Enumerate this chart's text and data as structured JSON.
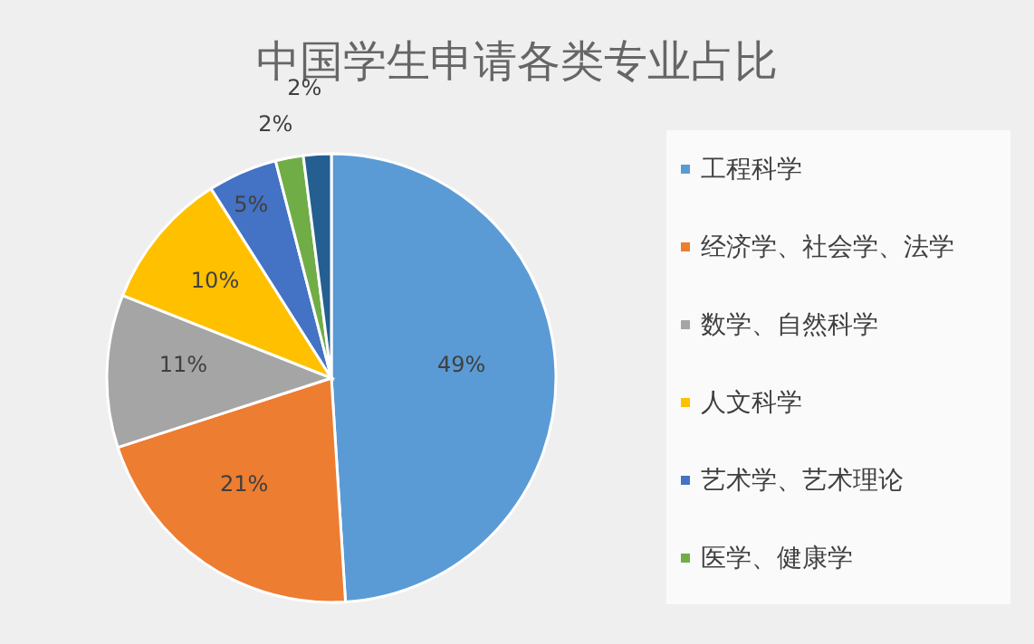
{
  "chart_data": {
    "type": "pie",
    "title": "中国学生申请各类专业占比",
    "categories": [
      "工程科学",
      "经济学、社会学、法学",
      "数学、自然科学",
      "人文科学",
      "艺术学、艺术理论",
      "医学、健康学",
      null
    ],
    "values": [
      49,
      21,
      11,
      10,
      5,
      2,
      2
    ],
    "colors": [
      "#5b9bd5",
      "#ed7d31",
      "#a5a5a5",
      "#ffc000",
      "#4472c4",
      "#70ad47",
      "#255e91"
    ],
    "value_labels": [
      "49%",
      "21%",
      "11%",
      "10%",
      "5%",
      "2%",
      "2%"
    ],
    "legend": "right"
  }
}
